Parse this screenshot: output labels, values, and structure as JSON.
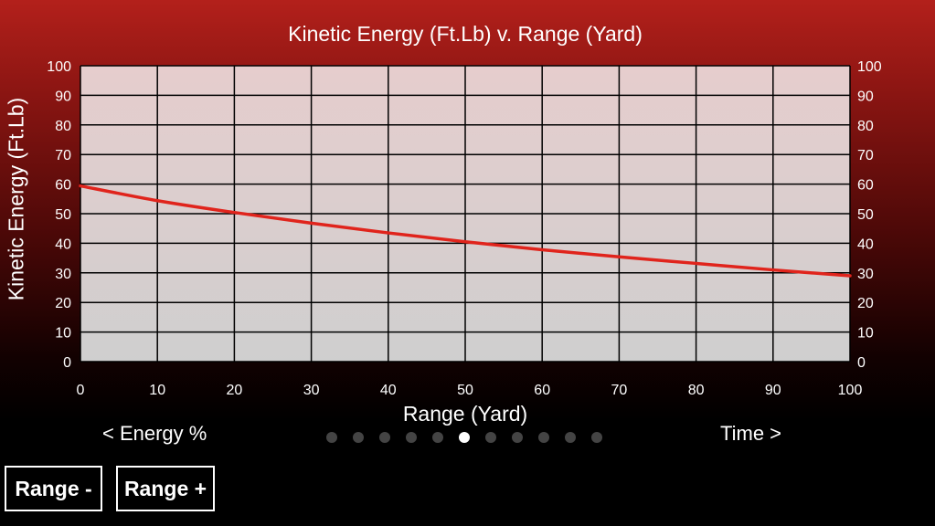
{
  "chart_data": {
    "type": "line",
    "title": "Kinetic Energy (Ft.Lb) v. Range (Yard)",
    "xlabel": "Range (Yard)",
    "ylabel": "Kinetic Energy (Ft.Lb)",
    "xlim": [
      0,
      100
    ],
    "ylim": [
      0,
      100
    ],
    "x_ticks": [
      "0",
      "10",
      "20",
      "30",
      "40",
      "50",
      "60",
      "70",
      "80",
      "90",
      "100"
    ],
    "y_ticks": [
      "0",
      "10",
      "20",
      "30",
      "40",
      "50",
      "60",
      "70",
      "80",
      "90",
      "100"
    ],
    "grid": true,
    "series": [
      {
        "color": "#e0241c",
        "x": [
          0,
          10,
          20,
          30,
          40,
          50,
          60,
          70,
          80,
          90,
          100
        ],
        "y": [
          59.4,
          54.4,
          50.4,
          46.8,
          43.5,
          40.5,
          37.8,
          35.4,
          33.2,
          31.0,
          29.0
        ]
      }
    ]
  },
  "nav": {
    "prev_label": "< Energy %",
    "next_label": "Time >",
    "page_count": 11,
    "active_page": 6
  },
  "buttons": {
    "range_minus": "Range -",
    "range_plus": "Range +"
  }
}
